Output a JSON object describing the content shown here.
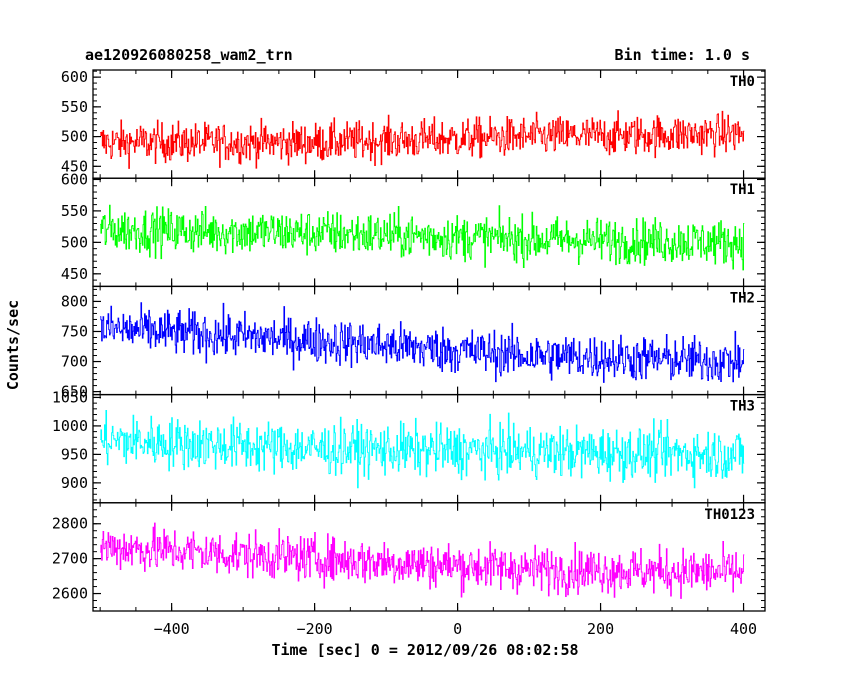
{
  "header": {
    "title": "ae120926080258_wam2_trn",
    "bin_time": "Bin time: 1.0 s"
  },
  "chart_data": {
    "type": "line",
    "title": "ae120926080258_wam2_trn",
    "subtitle": "Bin time: 1.0 s",
    "xlabel": "Time [sec] 0 = 2012/09/26 08:02:58",
    "ylabel": "Counts/sec",
    "xlim": [
      -510,
      430
    ],
    "xticks": [
      -400,
      -200,
      0,
      200,
      400
    ],
    "grid": false,
    "panels": [
      {
        "name": "TH0",
        "color": "#ff0000",
        "ylim": [
          430,
          612
        ],
        "yticks": [
          450,
          500,
          550,
          600
        ],
        "mean": [
          490,
          490,
          500,
          505
        ],
        "spread": 28
      },
      {
        "name": "TH1",
        "color": "#00ff00",
        "ylim": [
          430,
          602
        ],
        "yticks": [
          450,
          500,
          550,
          600
        ],
        "mean": [
          520,
          515,
          505,
          500
        ],
        "spread": 30
      },
      {
        "name": "TH2",
        "color": "#0000ff",
        "ylim": [
          645,
          825
        ],
        "yticks": [
          650,
          700,
          750,
          800
        ],
        "mean": [
          755,
          735,
          710,
          700
        ],
        "spread": 32
      },
      {
        "name": "TH3",
        "color": "#00ffff",
        "ylim": [
          865,
          1055
        ],
        "yticks": [
          900,
          950,
          1000,
          1050
        ],
        "mean": [
          975,
          960,
          955,
          950
        ],
        "spread": 38
      },
      {
        "name": "TH0123",
        "color": "#ff00ff",
        "ylim": [
          2550,
          2860
        ],
        "yticks": [
          2600,
          2700,
          2800
        ],
        "mean": [
          2735,
          2700,
          2670,
          2660
        ],
        "spread": 55
      }
    ],
    "series_range": [
      -500,
      400
    ],
    "series_step": 1
  }
}
